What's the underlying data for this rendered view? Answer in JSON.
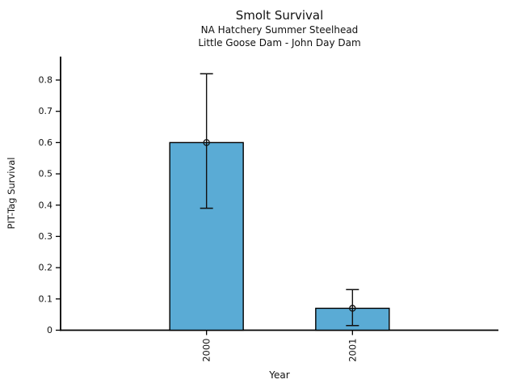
{
  "figure": {
    "title": "Smolt Survival",
    "subtitle_line1": "NA Hatchery Summer Steelhead",
    "subtitle_line2": "Little Goose Dam - John Day Dam"
  },
  "chart_data": {
    "type": "bar",
    "title": "Smolt Survival",
    "subtitle": [
      "NA Hatchery Summer Steelhead",
      "Little Goose Dam - John Day Dam"
    ],
    "xlabel": "Year",
    "ylabel": "PIT-Tag Survival",
    "categories": [
      "2000",
      "2001"
    ],
    "values": [
      0.6,
      0.07
    ],
    "error_bars": {
      "low": [
        0.39,
        0.015
      ],
      "high": [
        0.82,
        0.13
      ]
    },
    "yticks": [
      0,
      0.1,
      0.2,
      0.3,
      0.4,
      0.5,
      0.6,
      0.7,
      0.8
    ],
    "ytick_labels": [
      "0",
      "0.1",
      "0.2",
      "0.3",
      "0.4",
      "0.5",
      "0.6",
      "0.7",
      "0.8"
    ],
    "ylim": [
      0,
      0.875
    ],
    "xtick_rotation_deg": 90,
    "grid": false,
    "legend": "none",
    "marker": "open-circle",
    "bar_fill": "#5aabd5",
    "bar_edge": "#000000",
    "error_color": "#111111",
    "axis_color": "#000000",
    "background": "#ffffff"
  }
}
